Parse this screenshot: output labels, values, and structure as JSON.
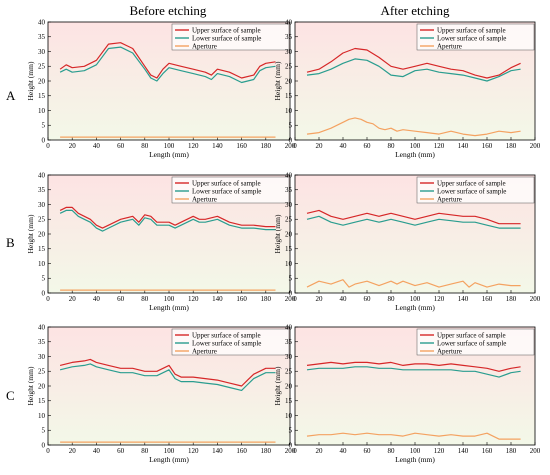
{
  "column_headers": [
    "Before etching",
    "After etching"
  ],
  "row_labels": [
    "A",
    "B",
    "C"
  ],
  "colors": {
    "upper": "#d62728",
    "lower": "#2a9d8f",
    "aperture": "#f4a261",
    "bg_top": "#fde3e3",
    "bg_bottom": "#f3f8e8"
  },
  "chart_data": [
    {
      "id": "A-before",
      "type": "line",
      "xlabel": "Length (mm)",
      "ylabel": "Height (mm)",
      "xlim": [
        0,
        200
      ],
      "ylim": [
        0,
        40
      ],
      "xticks": [
        "0",
        "20",
        "40",
        "60",
        "80",
        "100",
        "120",
        "140",
        "160",
        "180",
        "200"
      ],
      "yticks": [
        "0",
        "5",
        "10",
        "15",
        "20",
        "25",
        "30",
        "35",
        "40"
      ],
      "legend": "top-right",
      "series": [
        {
          "name": "Upper surface of sample",
          "color": "#d62728",
          "x": [
            10,
            15,
            20,
            30,
            40,
            50,
            60,
            70,
            80,
            85,
            90,
            95,
            100,
            110,
            120,
            130,
            135,
            140,
            150,
            160,
            170,
            175,
            180,
            188
          ],
          "y": [
            24,
            25.5,
            24.5,
            25,
            27,
            32.5,
            33,
            31,
            25,
            22,
            21,
            24,
            26,
            25,
            24,
            23,
            22,
            24,
            23,
            21,
            22,
            25,
            26,
            26.5
          ]
        },
        {
          "name": "Lower surface of sample",
          "color": "#2a9d8f",
          "x": [
            10,
            15,
            20,
            30,
            40,
            50,
            60,
            70,
            80,
            85,
            90,
            95,
            100,
            110,
            120,
            130,
            135,
            140,
            150,
            160,
            170,
            175,
            180,
            188
          ],
          "y": [
            23,
            24,
            23,
            23.5,
            25.5,
            31,
            31.5,
            29.5,
            24,
            21,
            20,
            22.5,
            24.5,
            23.5,
            22.5,
            21.5,
            20.5,
            22.5,
            21.5,
            19.5,
            20.5,
            23.5,
            24.5,
            25
          ]
        },
        {
          "name": "Aperture",
          "color": "#f4a261",
          "x": [
            10,
            188
          ],
          "y": [
            1,
            1
          ]
        }
      ]
    },
    {
      "id": "A-after",
      "type": "line",
      "xlabel": "Length (mm)",
      "ylabel": "Height (mm)",
      "xlim": [
        0,
        200
      ],
      "ylim": [
        0,
        40
      ],
      "xticks": [
        "0",
        "20",
        "40",
        "60",
        "80",
        "100",
        "120",
        "140",
        "160",
        "180",
        "200"
      ],
      "yticks": [
        "0",
        "5",
        "10",
        "15",
        "20",
        "25",
        "30",
        "35",
        "40"
      ],
      "legend": "top-right",
      "series": [
        {
          "name": "Upper surface of sample",
          "color": "#d62728",
          "x": [
            10,
            20,
            30,
            40,
            50,
            60,
            70,
            80,
            90,
            100,
            110,
            120,
            130,
            140,
            150,
            160,
            170,
            180,
            188
          ],
          "y": [
            23,
            24,
            26.5,
            29.5,
            31,
            30.5,
            28,
            25,
            24,
            25,
            26,
            25,
            24,
            23.5,
            22,
            21,
            22,
            24.5,
            26
          ]
        },
        {
          "name": "Lower surface of sample",
          "color": "#2a9d8f",
          "x": [
            10,
            20,
            30,
            40,
            50,
            60,
            70,
            80,
            90,
            100,
            110,
            120,
            130,
            140,
            150,
            160,
            170,
            180,
            188
          ],
          "y": [
            22,
            22.5,
            24,
            26,
            27.5,
            27,
            25,
            22,
            21.5,
            23.5,
            24,
            23,
            22.5,
            22,
            21,
            20,
            21.5,
            23.5,
            24
          ]
        },
        {
          "name": "Aperture",
          "color": "#f4a261",
          "x": [
            10,
            20,
            30,
            40,
            45,
            50,
            55,
            60,
            65,
            70,
            75,
            80,
            85,
            90,
            100,
            110,
            120,
            130,
            140,
            150,
            160,
            170,
            180,
            188
          ],
          "y": [
            2,
            2.5,
            4,
            6,
            7,
            7.5,
            7,
            6,
            5.5,
            4,
            3.5,
            4,
            3,
            3.5,
            3,
            2.5,
            2,
            3,
            2,
            1.5,
            2,
            3,
            2.5,
            3
          ]
        }
      ]
    },
    {
      "id": "B-before",
      "type": "line",
      "xlabel": "Length (mm)",
      "ylabel": "Height (mm)",
      "xlim": [
        0,
        200
      ],
      "ylim": [
        0,
        40
      ],
      "xticks": [
        "0",
        "20",
        "40",
        "60",
        "80",
        "100",
        "120",
        "140",
        "160",
        "180",
        "200"
      ],
      "yticks": [
        "0",
        "5",
        "10",
        "15",
        "20",
        "25",
        "30",
        "35",
        "40"
      ],
      "legend": "top-right",
      "series": [
        {
          "name": "Upper surface of sample",
          "color": "#d62728",
          "x": [
            10,
            15,
            20,
            25,
            30,
            35,
            40,
            45,
            50,
            60,
            70,
            75,
            80,
            85,
            90,
            100,
            105,
            110,
            120,
            125,
            130,
            140,
            150,
            160,
            170,
            180,
            188
          ],
          "y": [
            28,
            29,
            29,
            27,
            26,
            25,
            23,
            22,
            23,
            25,
            26,
            24,
            26.5,
            26,
            24,
            24,
            23,
            24,
            26,
            25,
            25,
            26,
            24,
            23,
            23,
            22.5,
            22.5
          ]
        },
        {
          "name": "Lower surface of sample",
          "color": "#2a9d8f",
          "x": [
            10,
            15,
            20,
            25,
            30,
            35,
            40,
            45,
            50,
            60,
            70,
            75,
            80,
            85,
            90,
            100,
            105,
            110,
            120,
            125,
            130,
            140,
            150,
            160,
            170,
            180,
            188
          ],
          "y": [
            27,
            28,
            28,
            26,
            25,
            24,
            22,
            21,
            22,
            24,
            25,
            23,
            25.5,
            25,
            23,
            23,
            22,
            23,
            25,
            24,
            24,
            25,
            23,
            22,
            22,
            21.5,
            21.5
          ]
        },
        {
          "name": "Aperture",
          "color": "#f4a261",
          "x": [
            10,
            188
          ],
          "y": [
            1,
            1
          ]
        }
      ]
    },
    {
      "id": "B-after",
      "type": "line",
      "xlabel": "Length (mm)",
      "ylabel": "Height (mm)",
      "xlim": [
        0,
        200
      ],
      "ylim": [
        0,
        40
      ],
      "xticks": [
        "0",
        "20",
        "40",
        "60",
        "80",
        "100",
        "120",
        "140",
        "160",
        "180",
        "200"
      ],
      "yticks": [
        "0",
        "5",
        "10",
        "15",
        "20",
        "25",
        "30",
        "35",
        "40"
      ],
      "legend": "top-right",
      "series": [
        {
          "name": "Upper surface of sample",
          "color": "#d62728",
          "x": [
            10,
            20,
            30,
            40,
            50,
            60,
            70,
            80,
            90,
            100,
            110,
            120,
            130,
            140,
            150,
            160,
            170,
            180,
            188
          ],
          "y": [
            27,
            28,
            26,
            25,
            26,
            27,
            26,
            27,
            26,
            25,
            26,
            27,
            26.5,
            26,
            26,
            25,
            23.5,
            23.5,
            23.5
          ]
        },
        {
          "name": "Lower surface of sample",
          "color": "#2a9d8f",
          "x": [
            10,
            20,
            30,
            40,
            50,
            60,
            70,
            80,
            90,
            100,
            110,
            120,
            130,
            140,
            150,
            160,
            170,
            180,
            188
          ],
          "y": [
            25,
            26,
            24,
            23,
            24,
            25,
            24,
            25,
            24,
            23,
            24,
            25,
            24.5,
            24,
            24,
            23,
            22,
            22,
            22
          ]
        },
        {
          "name": "Aperture",
          "color": "#f4a261",
          "x": [
            10,
            20,
            30,
            40,
            45,
            50,
            60,
            70,
            80,
            85,
            90,
            100,
            110,
            120,
            130,
            140,
            145,
            150,
            160,
            170,
            180,
            188
          ],
          "y": [
            2,
            4,
            3,
            4.5,
            2,
            3,
            4,
            2.5,
            4,
            3,
            4,
            2.5,
            3.5,
            2,
            3,
            4,
            2,
            3.5,
            2,
            3,
            2.5,
            2.5
          ]
        }
      ]
    },
    {
      "id": "C-before",
      "type": "line",
      "xlabel": "Length (mm)",
      "ylabel": "Height (mm)",
      "xlim": [
        0,
        200
      ],
      "ylim": [
        0,
        40
      ],
      "xticks": [
        "0",
        "20",
        "40",
        "60",
        "80",
        "100",
        "120",
        "140",
        "160",
        "180",
        "200"
      ],
      "yticks": [
        "0",
        "5",
        "10",
        "15",
        "20",
        "25",
        "30",
        "35",
        "40"
      ],
      "legend": "top-right",
      "series": [
        {
          "name": "Upper surface of sample",
          "color": "#d62728",
          "x": [
            10,
            20,
            30,
            35,
            40,
            50,
            60,
            70,
            80,
            90,
            100,
            105,
            110,
            120,
            130,
            140,
            150,
            160,
            165,
            170,
            180,
            188
          ],
          "y": [
            27,
            28,
            28.5,
            29,
            28,
            27,
            26,
            26,
            25,
            25,
            27,
            24,
            23,
            23,
            22.5,
            22,
            21,
            20,
            22,
            24,
            26,
            26
          ]
        },
        {
          "name": "Lower surface of sample",
          "color": "#2a9d8f",
          "x": [
            10,
            20,
            30,
            35,
            40,
            50,
            60,
            70,
            80,
            90,
            100,
            105,
            110,
            120,
            130,
            140,
            150,
            160,
            165,
            170,
            180,
            188
          ],
          "y": [
            25.5,
            26.5,
            27,
            27.5,
            26.5,
            25.5,
            24.5,
            24.5,
            23.5,
            23.5,
            25.5,
            22.5,
            21.5,
            21.5,
            21,
            20.5,
            19.5,
            18.5,
            20.5,
            22.5,
            24.5,
            24.5
          ]
        },
        {
          "name": "Aperture",
          "color": "#f4a261",
          "x": [
            10,
            188
          ],
          "y": [
            1,
            1
          ]
        }
      ]
    },
    {
      "id": "C-after",
      "type": "line",
      "xlabel": "Length (mm)",
      "ylabel": "Height (mm)",
      "xlim": [
        0,
        200
      ],
      "ylim": [
        0,
        40
      ],
      "xticks": [
        "0",
        "20",
        "40",
        "60",
        "80",
        "100",
        "120",
        "140",
        "160",
        "180",
        "200"
      ],
      "yticks": [
        "0",
        "5",
        "10",
        "15",
        "20",
        "25",
        "30",
        "35",
        "40"
      ],
      "legend": "top-right",
      "series": [
        {
          "name": "Upper surface of sample",
          "color": "#d62728",
          "x": [
            10,
            20,
            30,
            40,
            50,
            60,
            70,
            80,
            90,
            100,
            110,
            120,
            130,
            140,
            150,
            160,
            170,
            180,
            188
          ],
          "y": [
            27,
            27.5,
            28,
            27.5,
            28,
            28,
            27.5,
            28,
            27,
            27.5,
            27.5,
            27,
            27.5,
            27,
            26.5,
            26,
            25,
            26,
            26.5
          ]
        },
        {
          "name": "Lower surface of sample",
          "color": "#2a9d8f",
          "x": [
            10,
            20,
            30,
            40,
            50,
            60,
            70,
            80,
            90,
            100,
            110,
            120,
            130,
            140,
            150,
            160,
            170,
            180,
            188
          ],
          "y": [
            25.5,
            26,
            26,
            26,
            26.5,
            26.5,
            26,
            26,
            25.5,
            25.5,
            25.5,
            25.5,
            25.5,
            25,
            25,
            24,
            23,
            24.5,
            25
          ]
        },
        {
          "name": "Aperture",
          "color": "#f4a261",
          "x": [
            10,
            20,
            30,
            40,
            50,
            60,
            70,
            80,
            90,
            100,
            110,
            120,
            130,
            140,
            150,
            160,
            170,
            180,
            188
          ],
          "y": [
            3,
            3.5,
            3.5,
            4,
            3.5,
            4,
            3.5,
            3.5,
            3,
            4,
            3.5,
            3,
            3.5,
            3,
            3,
            4,
            2,
            2,
            2
          ]
        }
      ]
    }
  ]
}
